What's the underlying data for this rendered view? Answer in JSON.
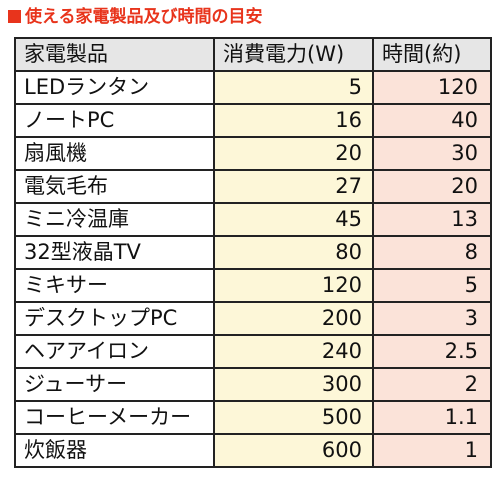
{
  "title": "■使える家電製品及び時間の目安",
  "title_text": "使える家電製品及び時間の目安",
  "colors": {
    "title": "#e8341c",
    "header_bg": "#e6e6e6",
    "watts_bg": "#fdf7d8",
    "hours_bg": "#fbe3d9",
    "border": "#222222"
  },
  "table": {
    "headers": [
      "家電製品",
      "消費電力(W)",
      "時間(約)"
    ],
    "rows": [
      {
        "name": "LEDランタン",
        "watts": "5",
        "hours": "120"
      },
      {
        "name": "ノートPC",
        "watts": "16",
        "hours": "40"
      },
      {
        "name": "扇風機",
        "watts": "20",
        "hours": "30"
      },
      {
        "name": "電気毛布",
        "watts": "27",
        "hours": "20"
      },
      {
        "name": "ミニ冷温庫",
        "watts": "45",
        "hours": "13"
      },
      {
        "name": "32型液晶TV",
        "watts": "80",
        "hours": "8"
      },
      {
        "name": "ミキサー",
        "watts": "120",
        "hours": "5"
      },
      {
        "name": "デスクトップPC",
        "watts": "200",
        "hours": "3"
      },
      {
        "name": "ヘアアイロン",
        "watts": "240",
        "hours": "2.5"
      },
      {
        "name": "ジューサー",
        "watts": "300",
        "hours": "2"
      },
      {
        "name": "コーヒーメーカー",
        "watts": "500",
        "hours": "1.1"
      },
      {
        "name": "炊飯器",
        "watts": "600",
        "hours": "1"
      }
    ]
  }
}
